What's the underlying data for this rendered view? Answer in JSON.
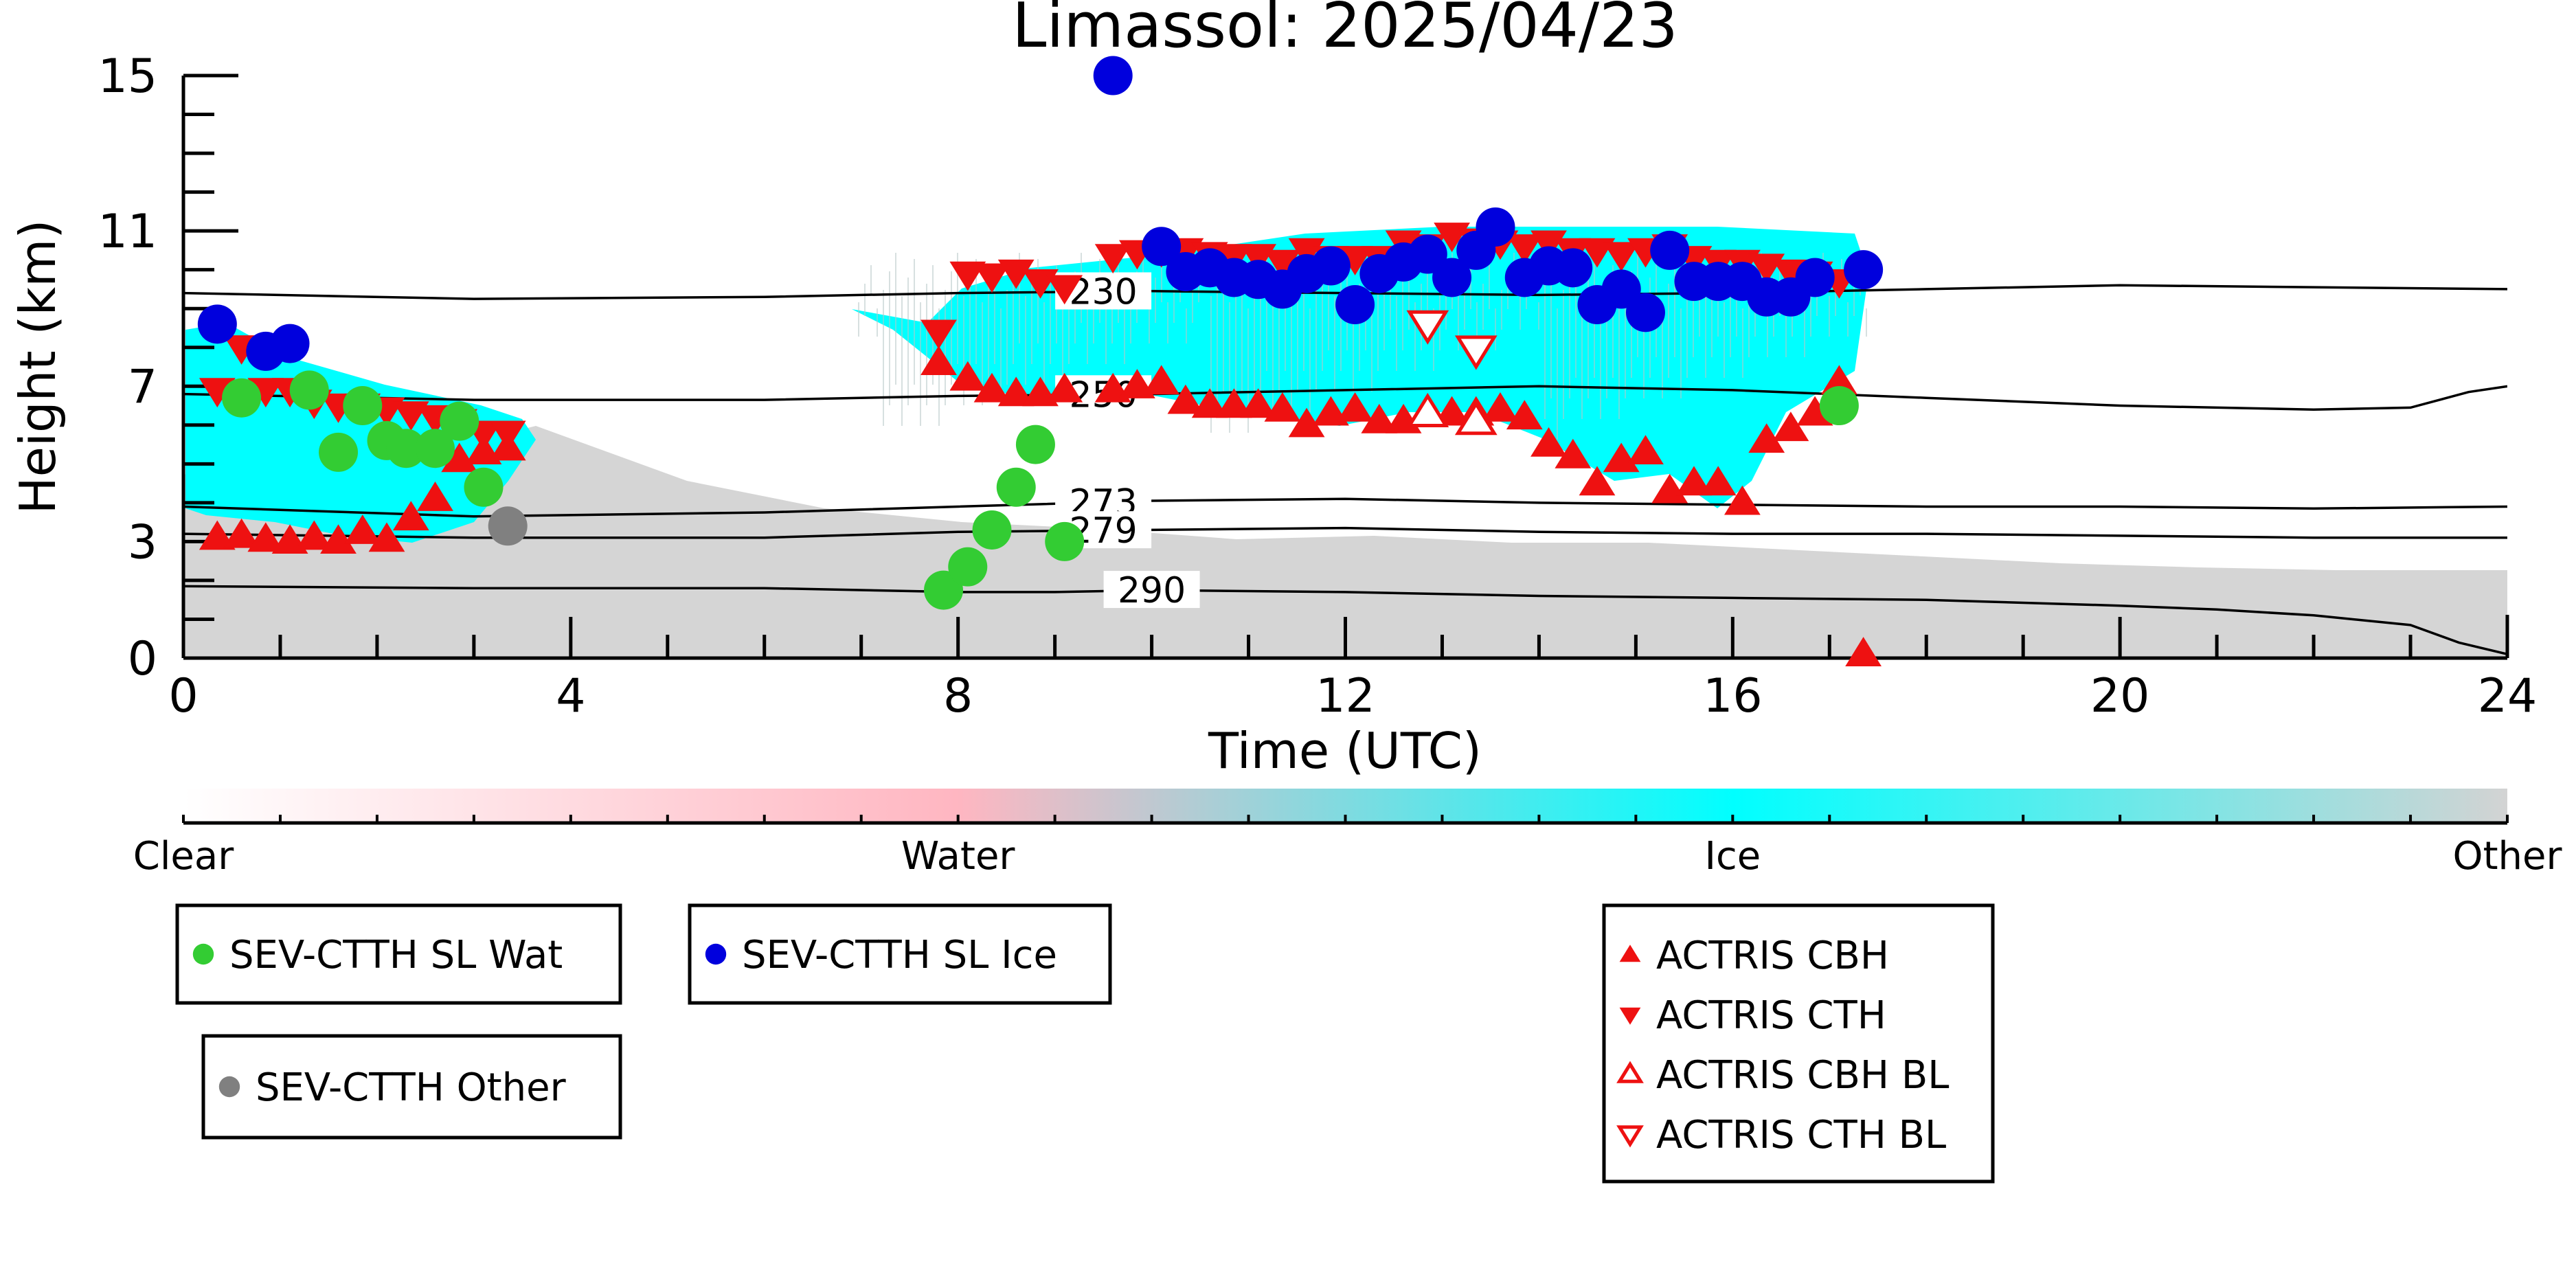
{
  "chart_data": {
    "type": "scatter",
    "title": "Limassol: 2025/04/23",
    "xlabel": "Time (UTC)",
    "ylabel": "Height (km)",
    "xlim": [
      0,
      24
    ],
    "ylim": [
      0,
      15
    ],
    "xticks": [
      0,
      4,
      8,
      12,
      16,
      20,
      24
    ],
    "yticks": [
      0,
      3,
      7,
      11,
      15
    ],
    "isotherms": [
      {
        "label": "230",
        "label_x": 9.5,
        "points": [
          [
            0,
            9.4
          ],
          [
            3,
            9.25
          ],
          [
            6,
            9.3
          ],
          [
            8,
            9.4
          ],
          [
            10,
            9.45
          ],
          [
            12,
            9.4
          ],
          [
            14,
            9.35
          ],
          [
            16,
            9.4
          ],
          [
            18,
            9.5
          ],
          [
            20,
            9.6
          ],
          [
            22,
            9.55
          ],
          [
            24,
            9.5
          ]
        ]
      },
      {
        "label": "250",
        "label_x": 9.5,
        "points": [
          [
            0,
            6.8
          ],
          [
            3,
            6.65
          ],
          [
            6,
            6.65
          ],
          [
            8,
            6.75
          ],
          [
            10,
            6.8
          ],
          [
            12,
            6.9
          ],
          [
            14,
            7.0
          ],
          [
            16,
            6.9
          ],
          [
            18,
            6.7
          ],
          [
            20,
            6.5
          ],
          [
            22,
            6.4
          ],
          [
            23,
            6.45
          ],
          [
            23.6,
            6.85
          ],
          [
            24,
            7.0
          ]
        ]
      },
      {
        "label": "273",
        "label_x": 9.5,
        "points": [
          [
            0,
            3.9
          ],
          [
            3,
            3.65
          ],
          [
            6,
            3.75
          ],
          [
            8,
            3.9
          ],
          [
            10,
            4.05
          ],
          [
            12,
            4.1
          ],
          [
            14,
            4.0
          ],
          [
            16,
            3.95
          ],
          [
            18,
            3.9
          ],
          [
            20,
            3.9
          ],
          [
            22,
            3.85
          ],
          [
            24,
            3.9
          ]
        ]
      },
      {
        "label": "279",
        "label_x": 9.5,
        "points": [
          [
            0,
            3.2
          ],
          [
            3,
            3.1
          ],
          [
            6,
            3.1
          ],
          [
            8,
            3.25
          ],
          [
            10,
            3.3
          ],
          [
            12,
            3.35
          ],
          [
            14,
            3.25
          ],
          [
            16,
            3.2
          ],
          [
            18,
            3.2
          ],
          [
            20,
            3.15
          ],
          [
            22,
            3.1
          ],
          [
            24,
            3.1
          ]
        ]
      },
      {
        "label": "290",
        "label_x": 10.0,
        "points": [
          [
            0,
            1.85
          ],
          [
            3,
            1.8
          ],
          [
            6,
            1.8
          ],
          [
            8,
            1.7
          ],
          [
            9,
            1.7
          ],
          [
            10,
            1.75
          ],
          [
            12,
            1.7
          ],
          [
            14,
            1.6
          ],
          [
            16,
            1.55
          ],
          [
            18,
            1.5
          ],
          [
            20,
            1.35
          ],
          [
            21,
            1.25
          ],
          [
            22,
            1.1
          ],
          [
            23,
            0.85
          ],
          [
            23.5,
            0.4
          ],
          [
            24,
            0.1
          ]
        ]
      }
    ],
    "series": [
      {
        "name": "SEV-CTTH SL Wat",
        "marker": "circle",
        "color": "#33cc33",
        "points": [
          [
            0.6,
            6.7
          ],
          [
            1.3,
            6.9
          ],
          [
            1.6,
            5.3
          ],
          [
            1.85,
            6.5
          ],
          [
            2.1,
            5.6
          ],
          [
            2.3,
            5.4
          ],
          [
            2.6,
            5.4
          ],
          [
            2.85,
            6.1
          ],
          [
            3.1,
            4.4
          ],
          [
            7.85,
            1.75
          ],
          [
            8.1,
            2.35
          ],
          [
            8.35,
            3.3
          ],
          [
            8.6,
            4.4
          ],
          [
            8.8,
            5.5
          ],
          [
            9.1,
            3.0
          ],
          [
            17.1,
            6.5
          ]
        ]
      },
      {
        "name": "SEV-CTTH SL Ice",
        "marker": "circle",
        "color": "#0000dd",
        "points": [
          [
            0.35,
            8.6
          ],
          [
            0.85,
            7.9
          ],
          [
            1.1,
            8.1
          ],
          [
            9.6,
            15.0
          ],
          [
            10.1,
            10.6
          ],
          [
            10.35,
            9.95
          ],
          [
            10.6,
            10.05
          ],
          [
            10.85,
            9.8
          ],
          [
            11.1,
            9.75
          ],
          [
            11.35,
            9.5
          ],
          [
            11.6,
            9.9
          ],
          [
            11.85,
            10.1
          ],
          [
            12.1,
            9.1
          ],
          [
            12.35,
            9.9
          ],
          [
            12.6,
            10.2
          ],
          [
            12.85,
            10.4
          ],
          [
            13.1,
            9.8
          ],
          [
            13.35,
            10.5
          ],
          [
            13.55,
            11.1
          ],
          [
            13.85,
            9.8
          ],
          [
            14.1,
            10.1
          ],
          [
            14.35,
            10.05
          ],
          [
            14.6,
            9.1
          ],
          [
            14.85,
            9.5
          ],
          [
            15.1,
            8.9
          ],
          [
            15.35,
            10.5
          ],
          [
            15.6,
            9.7
          ],
          [
            15.85,
            9.7
          ],
          [
            16.1,
            9.7
          ],
          [
            16.35,
            9.3
          ],
          [
            16.6,
            9.3
          ],
          [
            16.85,
            9.8
          ],
          [
            17.35,
            10.0
          ]
        ]
      },
      {
        "name": "SEV-CTTH Other",
        "marker": "circle",
        "color": "#808080",
        "points": [
          [
            3.35,
            3.4
          ]
        ]
      },
      {
        "name": "ACTRIS CBH",
        "marker": "triangle-up",
        "color": "#ee1111",
        "points": [
          [
            0.35,
            3.1
          ],
          [
            0.6,
            3.15
          ],
          [
            0.85,
            3.05
          ],
          [
            1.1,
            3.0
          ],
          [
            1.35,
            3.1
          ],
          [
            1.6,
            3.0
          ],
          [
            1.85,
            3.25
          ],
          [
            2.1,
            3.05
          ],
          [
            2.35,
            3.6
          ],
          [
            2.6,
            4.1
          ],
          [
            2.85,
            5.1
          ],
          [
            3.1,
            5.3
          ],
          [
            3.35,
            5.4
          ],
          [
            7.8,
            7.6
          ],
          [
            8.1,
            7.2
          ],
          [
            8.35,
            6.9
          ],
          [
            8.6,
            6.8
          ],
          [
            8.85,
            6.8
          ],
          [
            9.1,
            6.9
          ],
          [
            9.6,
            6.9
          ],
          [
            9.85,
            7.0
          ],
          [
            10.1,
            7.1
          ],
          [
            10.35,
            6.6
          ],
          [
            10.6,
            6.5
          ],
          [
            10.85,
            6.5
          ],
          [
            11.1,
            6.5
          ],
          [
            11.35,
            6.4
          ],
          [
            11.6,
            6.0
          ],
          [
            11.85,
            6.3
          ],
          [
            12.1,
            6.4
          ],
          [
            12.35,
            6.1
          ],
          [
            12.6,
            6.1
          ],
          [
            13.1,
            6.3
          ],
          [
            13.35,
            6.3
          ],
          [
            13.6,
            6.4
          ],
          [
            13.85,
            6.2
          ],
          [
            14.1,
            5.5
          ],
          [
            14.35,
            5.2
          ],
          [
            14.6,
            4.5
          ],
          [
            14.85,
            5.1
          ],
          [
            15.1,
            5.3
          ],
          [
            15.35,
            4.3
          ],
          [
            15.6,
            4.5
          ],
          [
            15.85,
            4.5
          ],
          [
            16.1,
            4.0
          ],
          [
            16.35,
            5.6
          ],
          [
            16.6,
            5.9
          ],
          [
            16.85,
            6.3
          ],
          [
            17.1,
            7.1
          ],
          [
            17.35,
            0.1
          ]
        ]
      },
      {
        "name": "ACTRIS CTH",
        "marker": "triangle-down",
        "color": "#ee1111",
        "points": [
          [
            0.35,
            6.9
          ],
          [
            0.6,
            8.0
          ],
          [
            0.85,
            6.9
          ],
          [
            1.1,
            6.9
          ],
          [
            1.35,
            6.6
          ],
          [
            1.6,
            6.5
          ],
          [
            1.85,
            6.5
          ],
          [
            2.1,
            6.4
          ],
          [
            2.35,
            6.3
          ],
          [
            2.6,
            6.2
          ],
          [
            2.85,
            6.1
          ],
          [
            3.1,
            5.8
          ],
          [
            3.35,
            5.8
          ],
          [
            7.8,
            8.4
          ],
          [
            8.1,
            9.9
          ],
          [
            8.35,
            9.85
          ],
          [
            8.6,
            9.95
          ],
          [
            8.85,
            9.7
          ],
          [
            9.1,
            9.55
          ],
          [
            9.6,
            10.35
          ],
          [
            9.85,
            10.45
          ],
          [
            10.1,
            10.5
          ],
          [
            10.35,
            10.5
          ],
          [
            10.6,
            10.4
          ],
          [
            10.85,
            10.35
          ],
          [
            11.1,
            10.35
          ],
          [
            11.35,
            10.2
          ],
          [
            11.6,
            10.5
          ],
          [
            11.85,
            10.3
          ],
          [
            12.1,
            10.3
          ],
          [
            12.35,
            10.3
          ],
          [
            12.6,
            10.7
          ],
          [
            12.85,
            10.6
          ],
          [
            13.1,
            10.9
          ],
          [
            13.35,
            10.75
          ],
          [
            13.6,
            10.7
          ],
          [
            13.85,
            10.6
          ],
          [
            14.1,
            10.7
          ],
          [
            14.35,
            10.5
          ],
          [
            14.6,
            10.5
          ],
          [
            14.85,
            10.4
          ],
          [
            15.1,
            10.5
          ],
          [
            15.35,
            10.6
          ],
          [
            15.6,
            10.3
          ],
          [
            15.85,
            10.2
          ],
          [
            16.1,
            10.2
          ],
          [
            16.35,
            10.1
          ],
          [
            16.6,
            9.95
          ],
          [
            16.85,
            9.9
          ],
          [
            17.1,
            9.7
          ]
        ]
      },
      {
        "name": "ACTRIS CBH BL",
        "marker": "triangle-up-open",
        "color": "#ee1111",
        "points": [
          [
            12.85,
            6.3
          ],
          [
            13.35,
            6.1
          ]
        ]
      },
      {
        "name": "ACTRIS CTH BL",
        "marker": "triangle-down-open",
        "color": "#ee1111",
        "points": [
          [
            12.85,
            8.6
          ],
          [
            13.35,
            7.95
          ]
        ]
      }
    ],
    "colorbar": {
      "labels": [
        "Clear",
        "Water",
        "Ice",
        "Other"
      ],
      "colors": [
        "#ffffff",
        "#ffb6c1",
        "#00ffff",
        "#d3d3d3"
      ]
    },
    "background_classes": {
      "ice_color": "#00ffff",
      "other_color": "#d3d3d3"
    }
  },
  "legends": [
    {
      "entries": [
        {
          "label": "SEV-CTTH SL Wat",
          "marker": "circle",
          "color": "#33cc33"
        }
      ]
    },
    {
      "entries": [
        {
          "label": "SEV-CTTH SL Ice",
          "marker": "circle",
          "color": "#0000dd"
        }
      ]
    },
    {
      "entries": [
        {
          "label": "SEV-CTTH Other",
          "marker": "circle",
          "color": "#808080"
        }
      ]
    },
    {
      "entries": [
        {
          "label": "ACTRIS CBH",
          "marker": "triangle-up",
          "color": "#ee1111"
        },
        {
          "label": "ACTRIS CTH",
          "marker": "triangle-down",
          "color": "#ee1111"
        },
        {
          "label": "ACTRIS CBH BL",
          "marker": "triangle-up-open",
          "color": "#ee1111"
        },
        {
          "label": "ACTRIS CTH BL",
          "marker": "triangle-down-open",
          "color": "#ee1111"
        }
      ]
    }
  ]
}
